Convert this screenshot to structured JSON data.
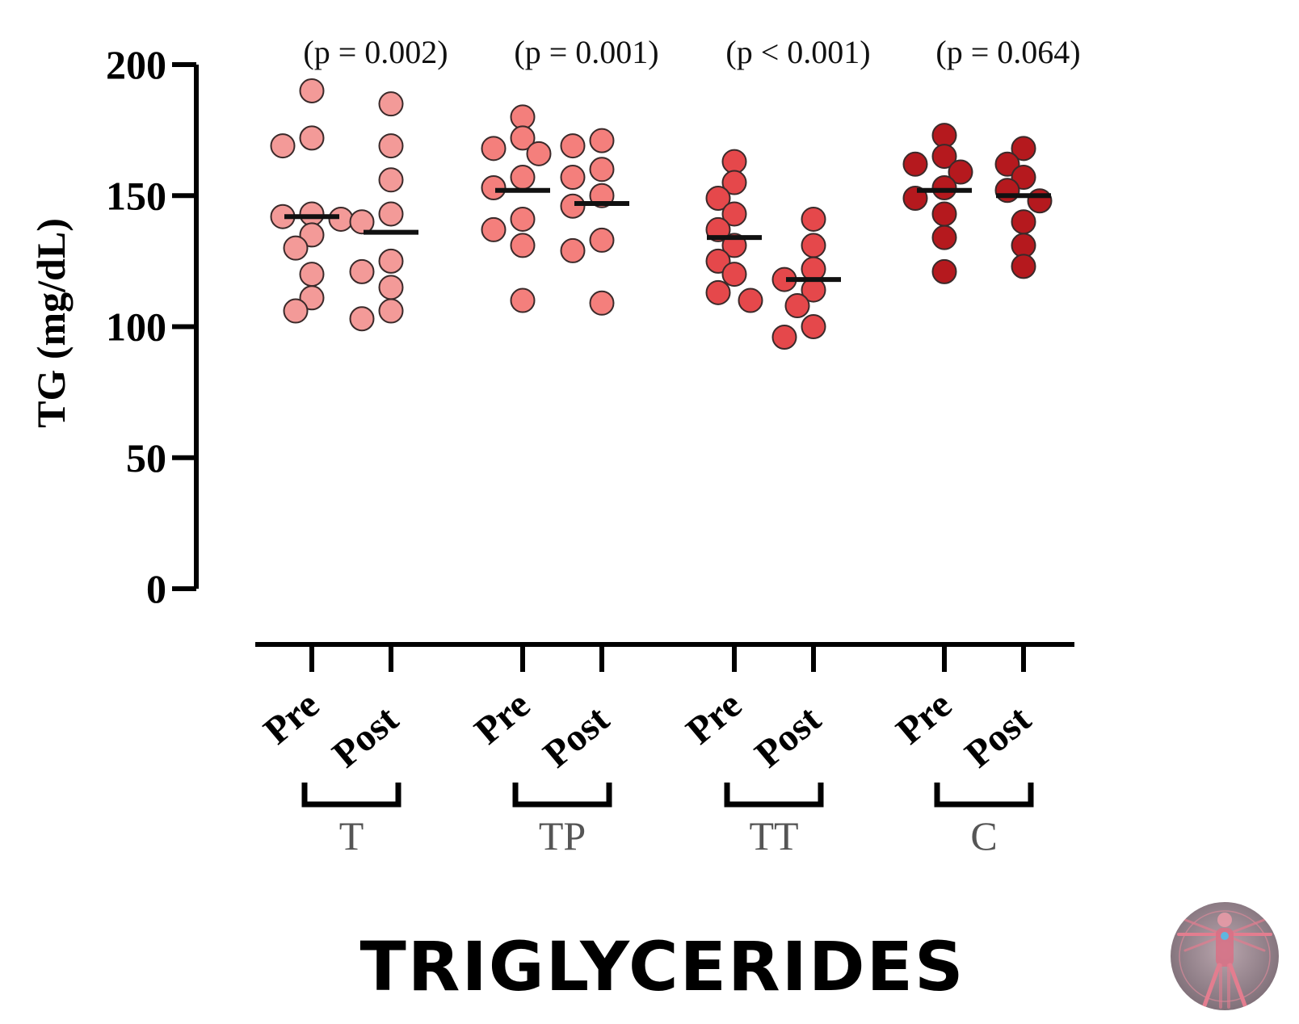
{
  "chart_data": {
    "type": "scatter",
    "title": "TRIGLYCERIDES",
    "ylabel": "TG (mg/dL)",
    "ylim": [
      0,
      200
    ],
    "yticks": [
      "0",
      "50",
      "100",
      "150",
      "200"
    ],
    "grid": false,
    "groups": [
      {
        "name": "T",
        "p_label": "(p = 0.002)",
        "color": "#f39a98",
        "conditions": [
          {
            "label": "Pre",
            "mean": 142,
            "values": [
              190,
              172,
              169,
              143,
              142,
              141,
              135,
              130,
              120,
              111,
              106
            ]
          },
          {
            "label": "Post",
            "mean": 136,
            "values": [
              185,
              169,
              156,
              143,
              140,
              125,
              121,
              115,
              106,
              103
            ]
          }
        ]
      },
      {
        "name": "TP",
        "p_label": "(p = 0.001)",
        "color": "#f47f7c",
        "conditions": [
          {
            "label": "Pre",
            "mean": 152,
            "values": [
              180,
              172,
              168,
              166,
              157,
              153,
              141,
              137,
              131,
              110
            ]
          },
          {
            "label": "Post",
            "mean": 147,
            "values": [
              171,
              169,
              160,
              157,
              150,
              146,
              133,
              129,
              109
            ]
          }
        ]
      },
      {
        "name": "TT",
        "p_label": "(p < 0.001)",
        "color": "#e5484b",
        "conditions": [
          {
            "label": "Pre",
            "mean": 134,
            "values": [
              163,
              155,
              149,
              143,
              137,
              131,
              125,
              120,
              113,
              110
            ]
          },
          {
            "label": "Post",
            "mean": 118,
            "values": [
              141,
              131,
              122,
              118,
              114,
              108,
              100,
              96
            ]
          }
        ]
      },
      {
        "name": "C",
        "p_label": "(p = 0.064)",
        "color": "#b5191e",
        "conditions": [
          {
            "label": "Pre",
            "mean": 152,
            "values": [
              173,
              165,
              162,
              159,
              153,
              149,
              143,
              134,
              121
            ]
          },
          {
            "label": "Post",
            "mean": 150,
            "values": [
              168,
              162,
              157,
              152,
              148,
              140,
              131,
              123
            ]
          }
        ]
      }
    ]
  }
}
